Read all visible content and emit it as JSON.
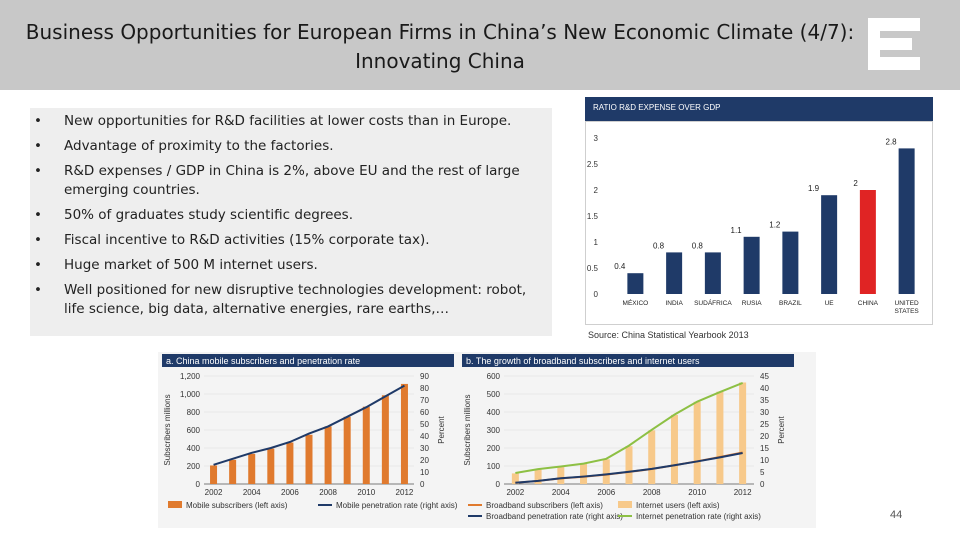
{
  "header": {
    "title_line1": "Business Opportunities for European Firms in China’s New Economic Climate (4/7):",
    "title_line2": "Innovating China",
    "logo_icon": "logo-e-icon"
  },
  "bullets": [
    "New opportunities for R&D facilities at lower costs than in Europe.",
    "Advantage of proximity to the factories.",
    "R&D expenses / GDP in China is 2%, above EU and the rest of large emerging countries.",
    "50% of graduates study scientific degrees.",
    "Fiscal incentive to R&D activities (15% corporate tax).",
    "Huge market of 500 M internet users.",
    "Well positioned for new disruptive technologies development: robot, life science, big data, alternative energies, rare earths,…"
  ],
  "bullet_symbol": "•",
  "source": "Source: China Statistical Yearbook 2013",
  "page_number": "44",
  "colors": {
    "header_bg": "#c8c8c8",
    "bar_blue": "#1f3a68",
    "bar_red": "#e02424",
    "orange": "#e07a2e",
    "green": "#8dc044",
    "light_orange": "#f7c98a"
  },
  "chart_data": [
    {
      "type": "bar",
      "title": "RATIO R&D EXPENSE OVER GDP",
      "categories": [
        "MÉXICO",
        "INDIA",
        "SUDÁFRICA",
        "RUSIA",
        "BRAZIL",
        "UE",
        "CHINA",
        "UNITED STATES"
      ],
      "values": [
        0.4,
        0.8,
        0.8,
        1.1,
        1.2,
        1.9,
        2,
        2.8
      ],
      "value_labels": [
        "0.4",
        "0.8",
        "0.8",
        "1.1",
        "1.2",
        "1.9",
        "2",
        "2.8"
      ],
      "highlight_category": "CHINA",
      "ylim": [
        0,
        3
      ],
      "yticks": [
        "0",
        "0.5",
        "1",
        "1.5",
        "2",
        "2.5",
        "3"
      ],
      "grid": false
    },
    {
      "type": "bar",
      "title": "a. China mobile subscribers and penetration rate",
      "categories": [
        "2002",
        "2003",
        "2004",
        "2005",
        "2006",
        "2007",
        "2008",
        "2009",
        "2010",
        "2011",
        "2012"
      ],
      "xticks": [
        "2002",
        "2004",
        "2006",
        "2008",
        "2010",
        "2012"
      ],
      "series": [
        {
          "name": "Mobile subscribers (left axis)",
          "axis": "left",
          "values": [
            206,
            269,
            335,
            393,
            461,
            547,
            641,
            747,
            859,
            986,
            1112
          ]
        },
        {
          "name": "Mobile penetration rate (right axis)",
          "axis": "right",
          "line": true,
          "values": [
            16,
            21,
            26,
            30,
            35,
            42,
            48,
            56,
            64,
            73,
            82
          ]
        }
      ],
      "ylabel": "Subscribers millions",
      "ylabel_right": "Percent",
      "ylim": [
        0,
        1200
      ],
      "ylim_right": [
        0,
        90
      ],
      "yticks": [
        "0",
        "200",
        "400",
        "600",
        "800",
        "1,000",
        "1,200"
      ],
      "yticks_right": [
        "0",
        "10",
        "20",
        "30",
        "40",
        "50",
        "60",
        "70",
        "80",
        "90"
      ]
    },
    {
      "type": "bar",
      "title": "b. The growth of broadband subscribers and internet users",
      "categories": [
        "2002",
        "2003",
        "2004",
        "2005",
        "2006",
        "2007",
        "2008",
        "2009",
        "2010",
        "2011",
        "2012"
      ],
      "xticks": [
        "2002",
        "2004",
        "2006",
        "2008",
        "2010",
        "2012"
      ],
      "series": [
        {
          "name": "Broadband subscribers (left axis)",
          "axis": "left",
          "line": true,
          "values": [
            7,
            17,
            31,
            40,
            52,
            67,
            83,
            104,
            126,
            150,
            175
          ]
        },
        {
          "name": "Internet users (left axis)",
          "axis": "left",
          "values": [
            59,
            80,
            94,
            111,
            137,
            210,
            298,
            384,
            457,
            513,
            564
          ]
        },
        {
          "name": "Broadband penetration rate (right axis)",
          "axis": "right",
          "line": true,
          "values": [
            0.5,
            1.3,
            2.4,
            3.1,
            4,
            5.1,
            6.3,
            7.8,
            9.4,
            11.1,
            12.9
          ]
        },
        {
          "name": "Internet penetration rate (right axis)",
          "axis": "right",
          "line": true,
          "values": [
            4.6,
            6.2,
            7.3,
            8.5,
            10.5,
            16,
            22.6,
            28.9,
            34.3,
            38.3,
            42.1
          ]
        }
      ],
      "ylabel": "Subscribers millions",
      "ylabel_right": "Percent",
      "ylim": [
        0,
        600
      ],
      "ylim_right": [
        0,
        45
      ],
      "yticks": [
        "0",
        "100",
        "200",
        "300",
        "400",
        "500",
        "600"
      ],
      "yticks_right": [
        "0",
        "5",
        "10",
        "15",
        "20",
        "25",
        "30",
        "35",
        "40",
        "45"
      ]
    }
  ]
}
